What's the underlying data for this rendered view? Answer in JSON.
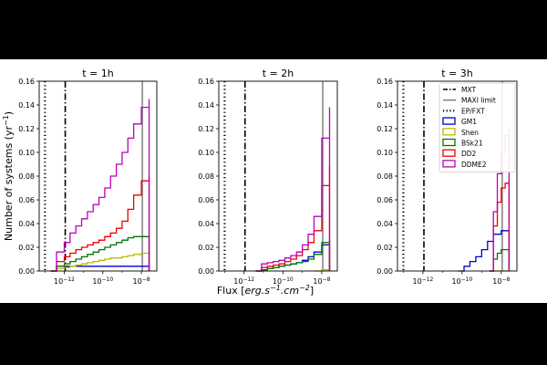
{
  "figure": {
    "ylabel_main": "Number of systems (yr",
    "ylabel_sup": "−1",
    "ylabel_close": ")",
    "xlabel_main": "Flux [",
    "xlabel_italic": "erg.s",
    "xlabel_sup1": "−1",
    "xlabel_mid": ".cm",
    "xlabel_sup2": "−2",
    "xlabel_close": "]"
  },
  "legend": {
    "placement": "top-right of third panel",
    "entries": [
      {
        "label": "MXT",
        "style": "dashdot"
      },
      {
        "label": "MAXI limit",
        "style": "solid-gray"
      },
      {
        "label": "EP/FXT",
        "style": "dotted"
      },
      {
        "label": "GM1",
        "color": "#0000cc"
      },
      {
        "label": "Shen",
        "color": "#bbbb00"
      },
      {
        "label": "BSk21",
        "color": "#007700"
      },
      {
        "label": "DD2",
        "color": "#ee0000"
      },
      {
        "label": "DDME2",
        "color": "#bb00bb"
      }
    ]
  },
  "colors": {
    "GM1": "#0000cc",
    "Shen": "#bbbb00",
    "BSk21": "#007700",
    "DD2": "#ee0000",
    "DDME2": "#bb00bb",
    "MAXI": "#808080"
  },
  "chart_data": [
    {
      "type": "line",
      "style": "cumulative step histogram",
      "title": "t = 1h",
      "xscale": "log",
      "xlim_exp": [
        -13.3,
        -7.2
      ],
      "ylim": [
        0,
        0.16
      ],
      "yticks": [
        "0.00",
        "0.02",
        "0.04",
        "0.06",
        "0.08",
        "0.10",
        "0.12",
        "0.14",
        "0.16"
      ],
      "xticks": [
        {
          "exp": -12,
          "base": "10",
          "sup": "−12"
        },
        {
          "exp": -10,
          "base": "10",
          "sup": "−10"
        },
        {
          "exp": -8,
          "base": "10",
          "sup": "−8"
        }
      ],
      "vlines": {
        "EP_FXT": -13.0,
        "MXT": -11.95,
        "MAXI": -7.95
      },
      "series": [
        {
          "name": "GM1",
          "x_exp": [
            -12.7,
            -12.4,
            -7.6
          ],
          "y": [
            0.0,
            0.004,
            0.004
          ]
        },
        {
          "name": "Shen",
          "x_exp": [
            -12.7,
            -12.4,
            -12.0,
            -11.7,
            -11.4,
            -11.1,
            -10.8,
            -10.5,
            -10.2,
            -9.9,
            -9.6,
            -9.3,
            -9.0,
            -8.7,
            -8.4,
            -8.0,
            -7.6
          ],
          "y": [
            0.0,
            0.002,
            0.003,
            0.004,
            0.005,
            0.006,
            0.007,
            0.008,
            0.009,
            0.01,
            0.011,
            0.011,
            0.012,
            0.013,
            0.014,
            0.015,
            0.016
          ]
        },
        {
          "name": "BSk21",
          "x_exp": [
            -12.7,
            -12.4,
            -12.0,
            -11.7,
            -11.4,
            -11.1,
            -10.8,
            -10.5,
            -10.2,
            -9.9,
            -9.6,
            -9.3,
            -9.0,
            -8.7,
            -8.4,
            -8.0,
            -7.6
          ],
          "y": [
            0.0,
            0.004,
            0.006,
            0.008,
            0.01,
            0.012,
            0.014,
            0.016,
            0.018,
            0.02,
            0.022,
            0.024,
            0.026,
            0.028,
            0.029,
            0.029,
            0.029
          ]
        },
        {
          "name": "DD2",
          "x_exp": [
            -12.7,
            -12.4,
            -12.0,
            -11.7,
            -11.4,
            -11.1,
            -10.8,
            -10.5,
            -10.2,
            -9.9,
            -9.6,
            -9.3,
            -9.0,
            -8.7,
            -8.4,
            -8.0,
            -7.6
          ],
          "y": [
            0.0,
            0.008,
            0.012,
            0.015,
            0.018,
            0.02,
            0.022,
            0.024,
            0.026,
            0.029,
            0.032,
            0.036,
            0.042,
            0.052,
            0.064,
            0.076,
            0.08
          ]
        },
        {
          "name": "DDME2",
          "x_exp": [
            -12.7,
            -12.4,
            -12.0,
            -11.7,
            -11.4,
            -11.1,
            -10.8,
            -10.5,
            -10.2,
            -9.9,
            -9.6,
            -9.3,
            -9.0,
            -8.7,
            -8.4,
            -8.0,
            -7.6
          ],
          "y": [
            0.0,
            0.016,
            0.024,
            0.032,
            0.038,
            0.044,
            0.05,
            0.056,
            0.062,
            0.07,
            0.08,
            0.09,
            0.1,
            0.112,
            0.124,
            0.138,
            0.145
          ]
        }
      ]
    },
    {
      "type": "line",
      "style": "cumulative step histogram",
      "title": "t = 2h",
      "xscale": "log",
      "xlim_exp": [
        -13.3,
        -7.2
      ],
      "ylim": [
        0,
        0.16
      ],
      "yticks": [
        "0.00",
        "0.02",
        "0.04",
        "0.06",
        "0.08",
        "0.10",
        "0.12",
        "0.14",
        "0.16"
      ],
      "xticks": [
        {
          "exp": -12,
          "base": "10",
          "sup": "−12"
        },
        {
          "exp": -10,
          "base": "10",
          "sup": "−10"
        },
        {
          "exp": -8,
          "base": "10",
          "sup": "−8"
        }
      ],
      "vlines": {
        "EP_FXT": -13.0,
        "MXT": -11.95,
        "MAXI": -7.95
      },
      "series": [
        {
          "name": "GM1",
          "x_exp": [
            -11.4,
            -11.1,
            -10.8,
            -10.5,
            -10.2,
            -9.9,
            -9.6,
            -9.3,
            -9.0,
            -8.7,
            -8.4,
            -8.0,
            -7.6
          ],
          "y": [
            0.0,
            0.001,
            0.002,
            0.003,
            0.004,
            0.005,
            0.006,
            0.007,
            0.009,
            0.012,
            0.016,
            0.022,
            0.023
          ]
        },
        {
          "name": "Shen",
          "x_exp": [
            -8.4,
            -8.0,
            -7.6
          ],
          "y": [
            0.0,
            0.001,
            0.002
          ]
        },
        {
          "name": "BSk21",
          "x_exp": [
            -11.4,
            -11.1,
            -10.8,
            -10.5,
            -10.2,
            -9.9,
            -9.6,
            -9.3,
            -9.0,
            -8.7,
            -8.4,
            -8.0,
            -7.6
          ],
          "y": [
            0.0,
            0.001,
            0.002,
            0.003,
            0.004,
            0.005,
            0.006,
            0.007,
            0.008,
            0.01,
            0.014,
            0.024,
            0.026
          ]
        },
        {
          "name": "DD2",
          "x_exp": [
            -11.4,
            -11.1,
            -10.8,
            -10.5,
            -10.2,
            -9.9,
            -9.6,
            -9.3,
            -9.0,
            -8.7,
            -8.4,
            -8.0,
            -7.6
          ],
          "y": [
            0.0,
            0.003,
            0.004,
            0.005,
            0.006,
            0.008,
            0.01,
            0.013,
            0.018,
            0.024,
            0.034,
            0.072,
            0.088
          ]
        },
        {
          "name": "DDME2",
          "x_exp": [
            -11.4,
            -11.1,
            -10.8,
            -10.5,
            -10.2,
            -9.9,
            -9.6,
            -9.3,
            -9.0,
            -8.7,
            -8.4,
            -8.0,
            -7.6
          ],
          "y": [
            0.0,
            0.006,
            0.007,
            0.008,
            0.009,
            0.011,
            0.013,
            0.016,
            0.022,
            0.031,
            0.046,
            0.112,
            0.138
          ]
        }
      ]
    },
    {
      "type": "line",
      "style": "cumulative step histogram",
      "title": "t = 3h",
      "xscale": "log",
      "xlim_exp": [
        -13.3,
        -7.2
      ],
      "ylim": [
        0,
        0.16
      ],
      "yticks": [
        "0.00",
        "0.02",
        "0.04",
        "0.06",
        "0.08",
        "0.10",
        "0.12",
        "0.14",
        "0.16"
      ],
      "xticks": [
        {
          "exp": -12,
          "base": "10",
          "sup": "−12"
        },
        {
          "exp": -10,
          "base": "10",
          "sup": "−10"
        },
        {
          "exp": -8,
          "base": "10",
          "sup": "−8"
        }
      ],
      "vlines": {
        "EP_FXT": -13.0,
        "MXT": -11.95,
        "MAXI": -7.95
      },
      "series": [
        {
          "name": "GM1",
          "x_exp": [
            -10.2,
            -9.9,
            -9.6,
            -9.3,
            -9.0,
            -8.7,
            -8.4,
            -8.0,
            -7.6
          ],
          "y": [
            0.0,
            0.004,
            0.008,
            0.012,
            0.018,
            0.025,
            0.031,
            0.034,
            0.034
          ]
        },
        {
          "name": "Shen",
          "x_exp": [
            -8.6,
            -7.6
          ],
          "y": [
            0.0,
            0.0
          ]
        },
        {
          "name": "BSk21",
          "x_exp": [
            -8.6,
            -8.4,
            -8.2,
            -8.0,
            -7.6
          ],
          "y": [
            0.0,
            0.01,
            0.015,
            0.018,
            0.021
          ]
        },
        {
          "name": "DD2",
          "x_exp": [
            -8.6,
            -8.4,
            -8.2,
            -8.0,
            -7.8,
            -7.6
          ],
          "y": [
            0.0,
            0.038,
            0.058,
            0.07,
            0.074,
            0.077
          ]
        },
        {
          "name": "DDME2",
          "x_exp": [
            -8.6,
            -8.4,
            -8.2,
            -8.0,
            -7.8,
            -7.6
          ],
          "y": [
            0.0,
            0.05,
            0.082,
            0.1,
            0.114,
            0.122
          ]
        }
      ]
    }
  ]
}
